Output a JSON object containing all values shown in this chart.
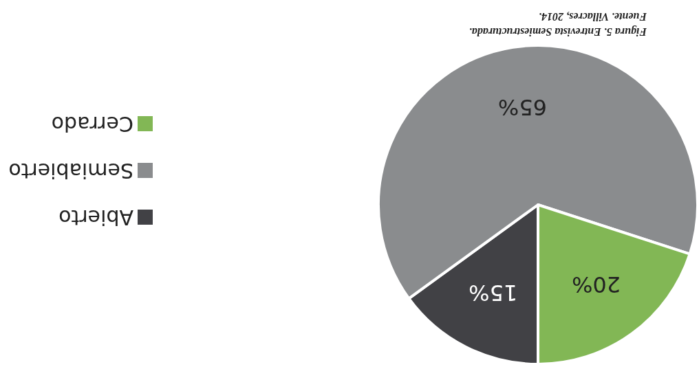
{
  "chart_data": {
    "type": "pie",
    "categories": [
      "Abierto",
      "Semiabierto",
      "Cerrado"
    ],
    "values": [
      15,
      65,
      20
    ],
    "colors": [
      "#414145",
      "#8a8c8e",
      "#82b755"
    ],
    "value_labels": [
      "15%",
      "65%",
      "20%"
    ],
    "legend": "left",
    "annotations": [
      "Figura 5. Entrevista Semiestructurada.",
      "Fuente. Villacres, 2014."
    ]
  }
}
